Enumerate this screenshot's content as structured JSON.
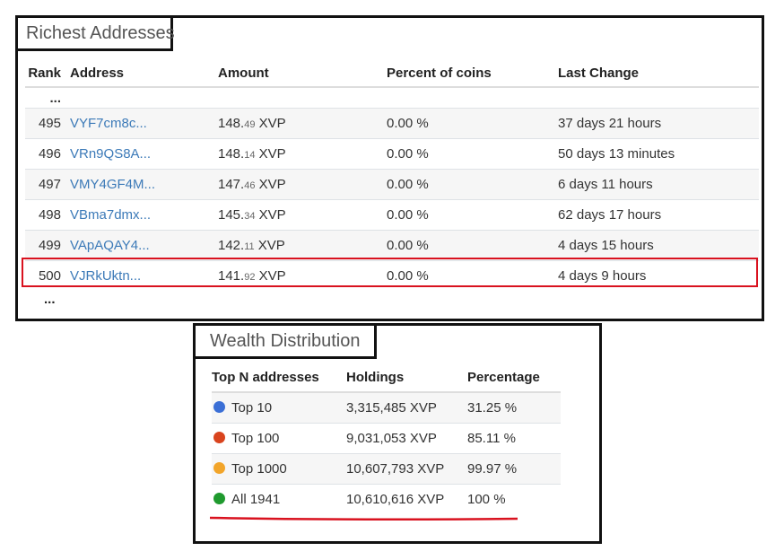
{
  "richest": {
    "title": "Richest Addresses",
    "columns": {
      "rank": "Rank",
      "address": "Address",
      "amount": "Amount",
      "percent": "Percent of coins",
      "last_change": "Last Change"
    },
    "ellipsis_top": "...",
    "ellipsis_bottom": "...",
    "rows": [
      {
        "rank": "495",
        "address": "VYF7cm8c...",
        "amount_int": "148.",
        "amount_frac": "49",
        "unit": " XVP",
        "percent": "0.00 %",
        "last_change": "37 days 21 hours"
      },
      {
        "rank": "496",
        "address": "VRn9QS8A...",
        "amount_int": "148.",
        "amount_frac": "14",
        "unit": " XVP",
        "percent": "0.00 %",
        "last_change": "50 days 13 minutes"
      },
      {
        "rank": "497",
        "address": "VMY4GF4M...",
        "amount_int": "147.",
        "amount_frac": "46",
        "unit": " XVP",
        "percent": "0.00 %",
        "last_change": "6 days 11 hours"
      },
      {
        "rank": "498",
        "address": "VBma7dmx...",
        "amount_int": "145.",
        "amount_frac": "34",
        "unit": " XVP",
        "percent": "0.00 %",
        "last_change": "62 days 17 hours"
      },
      {
        "rank": "499",
        "address": "VApAQAY4...",
        "amount_int": "142.",
        "amount_frac": "11",
        "unit": " XVP",
        "percent": "0.00 %",
        "last_change": "4 days 15 hours"
      },
      {
        "rank": "500",
        "address": "VJRkUktn...",
        "amount_int": "141.",
        "amount_frac": "92",
        "unit": " XVP",
        "percent": "0.00 %",
        "last_change": "4 days 9 hours"
      }
    ],
    "highlight_color": "#d9121f"
  },
  "wealth": {
    "title": "Wealth Distribution",
    "columns": {
      "top_n": "Top N addresses",
      "holdings": "Holdings",
      "percentage": "Percentage"
    },
    "rows": [
      {
        "label": "Top 10",
        "holdings": "3,315,485 XVP",
        "percentage": "31.25 %",
        "color": "#3b6fd6"
      },
      {
        "label": "Top 100",
        "holdings": "9,031,053 XVP",
        "percentage": "85.11 %",
        "color": "#d9441e"
      },
      {
        "label": "Top 1000",
        "holdings": "10,607,793 XVP",
        "percentage": "99.97 %",
        "color": "#f2a52a"
      },
      {
        "label": "All 1941",
        "holdings": "10,610,616 XVP",
        "percentage": "100 %",
        "color": "#1f9a2e"
      }
    ],
    "underline_color": "#d9121f"
  },
  "colors": {
    "link": "#3c7ab8",
    "border": "#111111"
  }
}
